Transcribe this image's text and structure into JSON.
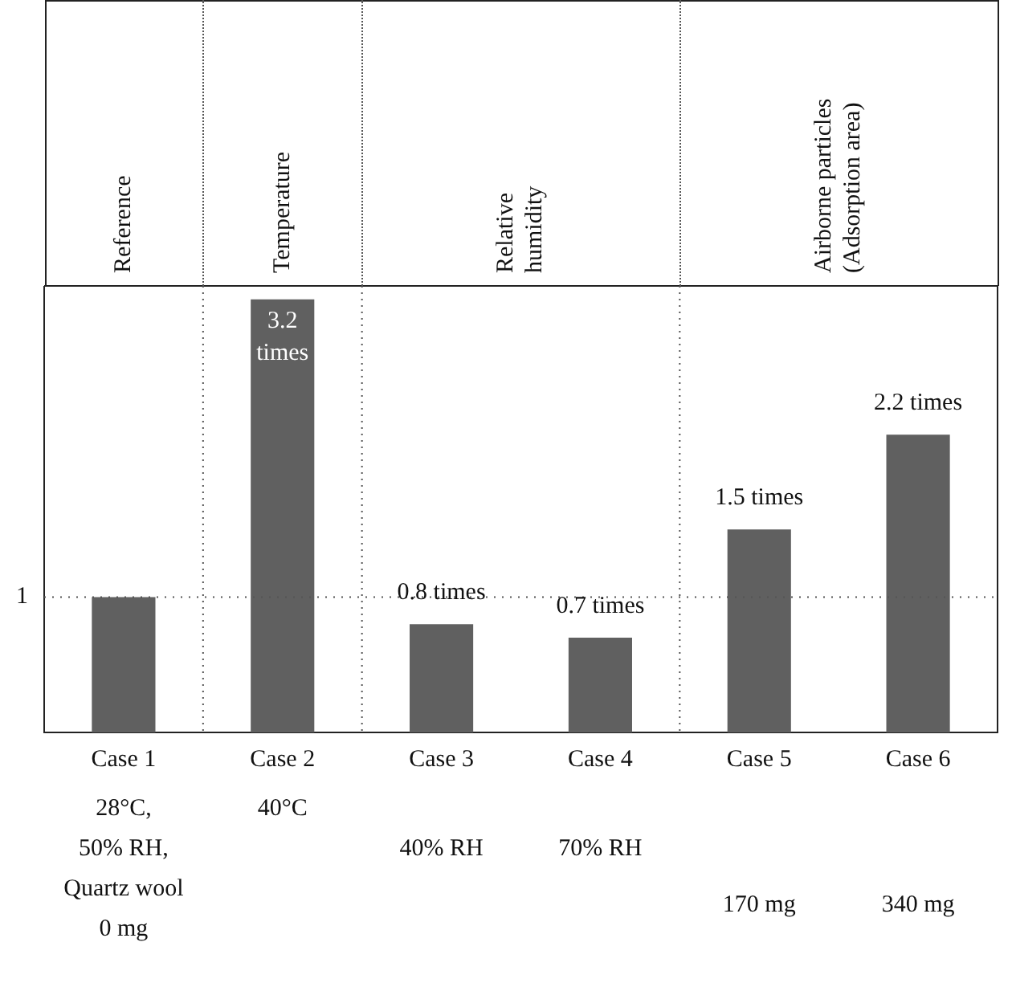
{
  "chart_data": {
    "type": "bar",
    "categories": [
      "Case 1",
      "Case 2",
      "Case 3",
      "Case 4",
      "Case 5",
      "Case 6"
    ],
    "values": [
      1,
      3.2,
      0.8,
      0.7,
      1.5,
      2.2
    ],
    "value_labels": [
      null,
      "3.2 times",
      "0.8 times",
      "0.7 times",
      "1.5 times",
      "2.2 times"
    ],
    "color": "#606060",
    "ylim": [
      0,
      3.3
    ],
    "yticks": [
      1
    ],
    "grid": false,
    "ref_lines": [
      {
        "axis": "y",
        "value": 1,
        "color": "#555555",
        "line_style": "dotted"
      }
    ],
    "annotations": [
      "Reference",
      "Temperature",
      "Relative\nhumidity",
      "Airborne particles\n(Adsorption area)",
      "28°C,\n50% RH,\nQuartz wool\n0 mg",
      "40°C",
      "40% RH",
      "70% RH",
      "170 mg",
      "340 mg"
    ]
  }
}
